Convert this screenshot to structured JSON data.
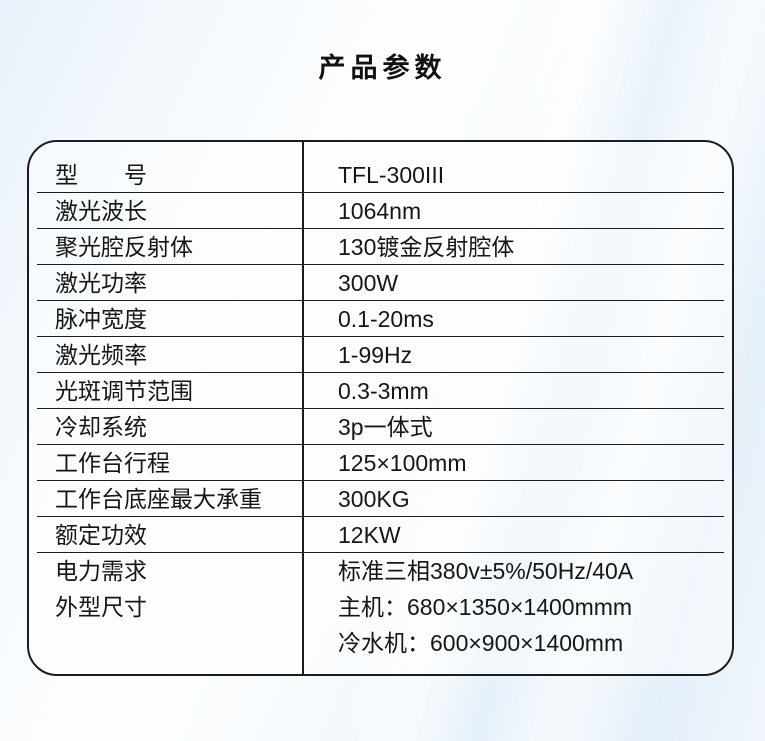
{
  "title": "产品参数",
  "colors": {
    "text": "#161616",
    "table_border": "#1c1c1c",
    "background_tint": "#e9f1fa",
    "background_highlight": "#fdfeff"
  },
  "table": {
    "rows": [
      {
        "label": "型　　号",
        "value": "TFL-300III",
        "tall": true,
        "divider": true
      },
      {
        "label": "激光波长",
        "value": "1064nm",
        "divider": true
      },
      {
        "label": "聚光腔反射体",
        "value": "130镀金反射腔体",
        "divider": true
      },
      {
        "label": "激光功率",
        "value": "300W",
        "divider": true
      },
      {
        "label": "脉冲宽度",
        "value": "0.1-20ms",
        "divider": true
      },
      {
        "label": "激光频率",
        "value": "1-99Hz",
        "divider": true
      },
      {
        "label": "光斑调节范围",
        "value": "0.3-3mm",
        "divider": true
      },
      {
        "label": "冷却系统",
        "value": "3p一体式",
        "divider": true
      },
      {
        "label": "工作台行程",
        "value": "125×100mm",
        "divider": true
      },
      {
        "label": "工作台底座最大承重",
        "value": "300KG",
        "divider": true
      },
      {
        "label": "额定功效",
        "value": "12KW",
        "divider": true
      },
      {
        "label": "电力需求",
        "value": "标准三相380v±5%/50Hz/40A",
        "divider": false
      },
      {
        "label": "外型尺寸",
        "value": "主机：680×1350×1400mmm",
        "divider": false
      },
      {
        "label": "",
        "value": "冷水机：600×900×1400mm",
        "divider": false
      }
    ]
  }
}
